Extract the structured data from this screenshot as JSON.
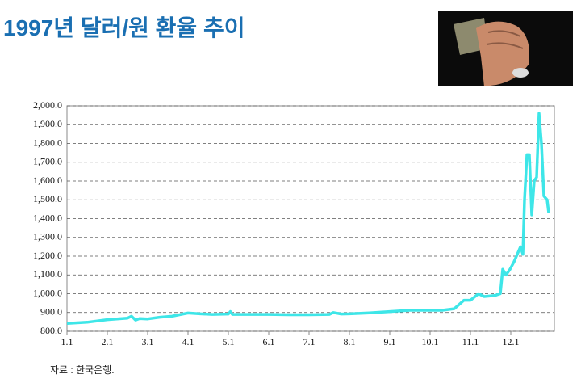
{
  "chart_data": {
    "type": "line",
    "title": "1997년 달러/원 환율 추이",
    "source": "자료 : 한국은행.",
    "color": "#3ee6e8",
    "grid": true,
    "x": [
      1.0,
      1.5,
      2.0,
      2.5,
      2.6,
      2.7,
      2.8,
      3.0,
      3.3,
      3.6,
      4.0,
      4.3,
      4.6,
      5.0,
      5.05,
      5.1,
      5.5,
      6.0,
      6.5,
      7.0,
      7.5,
      7.6,
      7.8,
      8.0,
      8.5,
      9.0,
      9.5,
      10.0,
      10.3,
      10.6,
      10.84,
      11.0,
      11.2,
      11.34,
      11.6,
      11.74,
      11.8,
      11.88,
      11.98,
      12.08,
      12.18,
      12.24,
      12.3,
      12.34,
      12.4,
      12.46,
      12.52,
      12.58,
      12.64,
      12.7,
      12.76,
      12.82,
      12.9,
      12.94
    ],
    "values": [
      842,
      848,
      862,
      870,
      880,
      860,
      868,
      866,
      875,
      880,
      897,
      893,
      890,
      892,
      905,
      890,
      890,
      890,
      888,
      888,
      890,
      900,
      892,
      893,
      898,
      905,
      912,
      912,
      912,
      920,
      965,
      965,
      1000,
      985,
      990,
      1000,
      1130,
      1100,
      1130,
      1170,
      1220,
      1250,
      1210,
      1500,
      1740,
      1740,
      1420,
      1600,
      1620,
      1960,
      1800,
      1520,
      1500,
      1430
    ],
    "xlim": [
      1,
      13.08
    ],
    "xticks": [
      {
        "value": 1,
        "label": "1.1"
      },
      {
        "value": 2,
        "label": "2.1"
      },
      {
        "value": 3,
        "label": "3.1"
      },
      {
        "value": 4,
        "label": "4.1"
      },
      {
        "value": 5,
        "label": "5.1"
      },
      {
        "value": 6,
        "label": "6.1"
      },
      {
        "value": 7,
        "label": "7.1"
      },
      {
        "value": 8,
        "label": "8.1"
      },
      {
        "value": 9,
        "label": "9.1"
      },
      {
        "value": 10,
        "label": "10.1"
      },
      {
        "value": 11,
        "label": "11.1"
      },
      {
        "value": 12,
        "label": "12.1"
      }
    ],
    "ylim": [
      800,
      2000
    ],
    "yticks": [
      {
        "value": 800,
        "label": "800.0"
      },
      {
        "value": 900,
        "label": "900.0"
      },
      {
        "value": 1000,
        "label": "1,000.0"
      },
      {
        "value": 1100,
        "label": "1,100.0"
      },
      {
        "value": 1200,
        "label": "1,200.0"
      },
      {
        "value": 1300,
        "label": "1,300.0"
      },
      {
        "value": 1400,
        "label": "1,400.0"
      },
      {
        "value": 1500,
        "label": "1,500.0"
      },
      {
        "value": 1600,
        "label": "1,600.0"
      },
      {
        "value": 1700,
        "label": "1,700.0"
      },
      {
        "value": 1800,
        "label": "1,800.0"
      },
      {
        "value": 1900,
        "label": "1,900.0"
      },
      {
        "value": 2000,
        "label": "2,000.0"
      }
    ]
  }
}
